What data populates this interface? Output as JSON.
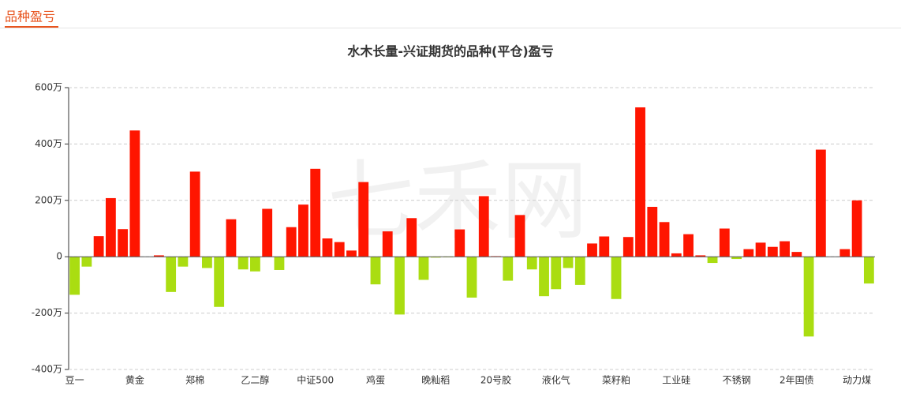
{
  "header": {
    "title": "品种盈亏"
  },
  "chart_data": {
    "type": "bar",
    "title": "水木长量-兴证期货的品种(平仓)盈亏",
    "watermark": "七禾网",
    "categories": [
      "豆一",
      null,
      null,
      null,
      null,
      "黄金",
      null,
      null,
      null,
      null,
      "郑棉",
      null,
      null,
      null,
      null,
      "乙二醇",
      null,
      null,
      null,
      null,
      "中证500",
      null,
      null,
      null,
      null,
      "鸡蛋",
      null,
      null,
      null,
      null,
      "晚籼稻",
      null,
      null,
      null,
      null,
      "20号胶",
      null,
      null,
      null,
      null,
      "液化气",
      null,
      null,
      null,
      null,
      "菜籽粕",
      null,
      null,
      null,
      null,
      "工业硅",
      null,
      null,
      null,
      null,
      "不锈钢",
      null,
      null,
      null,
      null,
      "2年国债",
      null,
      null,
      null,
      null,
      "动力煤",
      null
    ],
    "values": [
      -135,
      -35,
      73,
      208,
      98,
      448,
      0,
      5,
      -125,
      -35,
      302,
      -40,
      -178,
      133,
      -45,
      -52,
      170,
      -47,
      105,
      185,
      312,
      65,
      52,
      22,
      265,
      -98,
      90,
      -205,
      137,
      -82,
      -3,
      -2,
      97,
      -145,
      215,
      2,
      -85,
      148,
      -45,
      -140,
      -115,
      -40,
      -100,
      47,
      72,
      -150,
      70,
      530,
      177,
      123,
      12,
      80,
      5,
      -22,
      100,
      -8,
      27,
      50,
      35,
      55,
      17,
      -283,
      380,
      0,
      27,
      200,
      -95
    ],
    "positive_color": "#ff1500",
    "negative_color": "#aadd11",
    "ylim": [
      -400,
      600
    ],
    "yticks": [
      {
        "value": -400,
        "label": "-400万"
      },
      {
        "value": -200,
        "label": "-200万"
      },
      {
        "value": 0,
        "label": "0"
      },
      {
        "value": 200,
        "label": "200万"
      },
      {
        "value": 400,
        "label": "400万"
      },
      {
        "value": 600,
        "label": "600万"
      }
    ],
    "grid": true
  }
}
